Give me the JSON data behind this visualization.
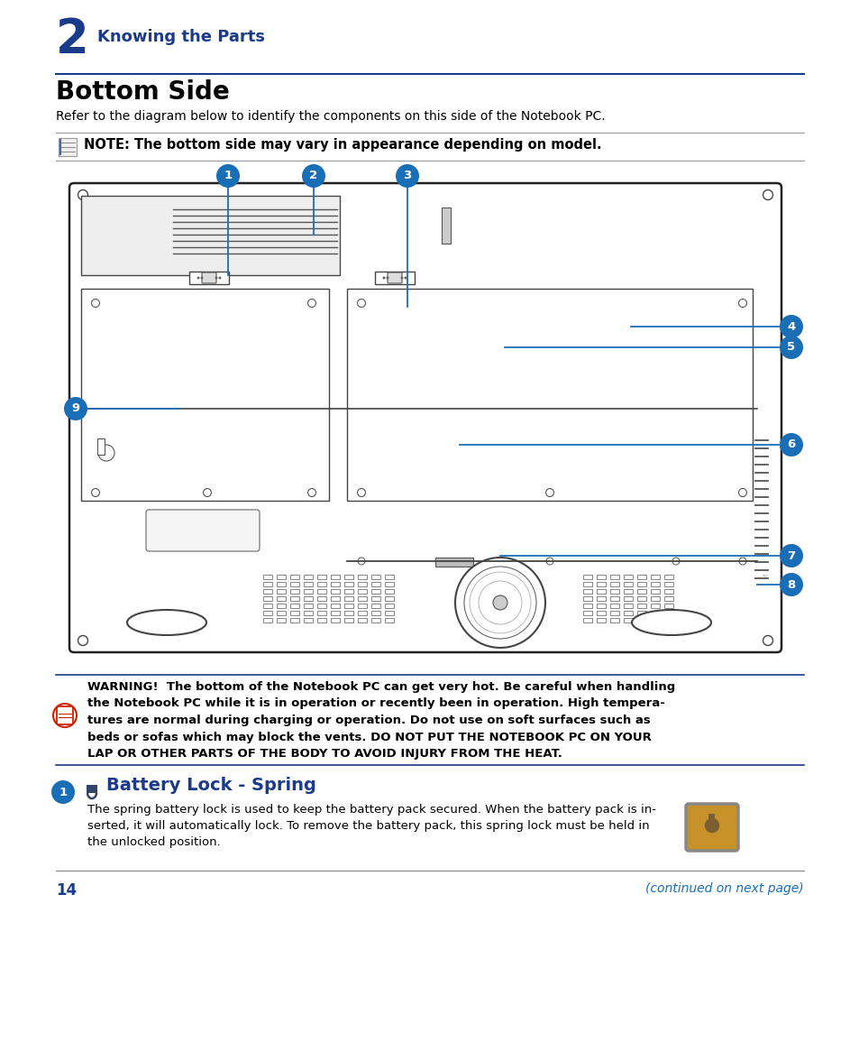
{
  "page_bg": "#ffffff",
  "chapter_number": "2",
  "chapter_title": "Knowing the Parts",
  "section_title": "Bottom Side",
  "intro_text": "Refer to the diagram below to identify the components on this side of the Notebook PC.",
  "note_text": "NOTE: The bottom side may vary in appearance depending on model.",
  "page_number": "14",
  "continued_text": "(continued on next page)",
  "dark_blue": "#1a3a8a",
  "label_blue": "#1a6eb5",
  "text_color": "#000000",
  "warn_lines": [
    "WARNING!  The bottom of the Notebook PC can get very hot. Be careful when handling",
    "the Notebook PC while it is in operation or recently been in operation. High tempera-",
    "tures are normal during charging or operation. Do not use on soft surfaces such as",
    "beds or sofas which may block the vents. DO NOT PUT THE NOTEBOOK PC ON YOUR",
    "LAP OR OTHER PARTS OF THE BODY TO AVOID INJURY FROM THE HEAT."
  ],
  "bl_lines": [
    "The spring battery lock is used to keep the battery pack secured. When the battery pack is in-",
    "serted, it will automatically lock. To remove the battery pack, this spring lock must be held in",
    "the unlocked position."
  ],
  "battery_lock_title": "Battery Lock - Spring"
}
